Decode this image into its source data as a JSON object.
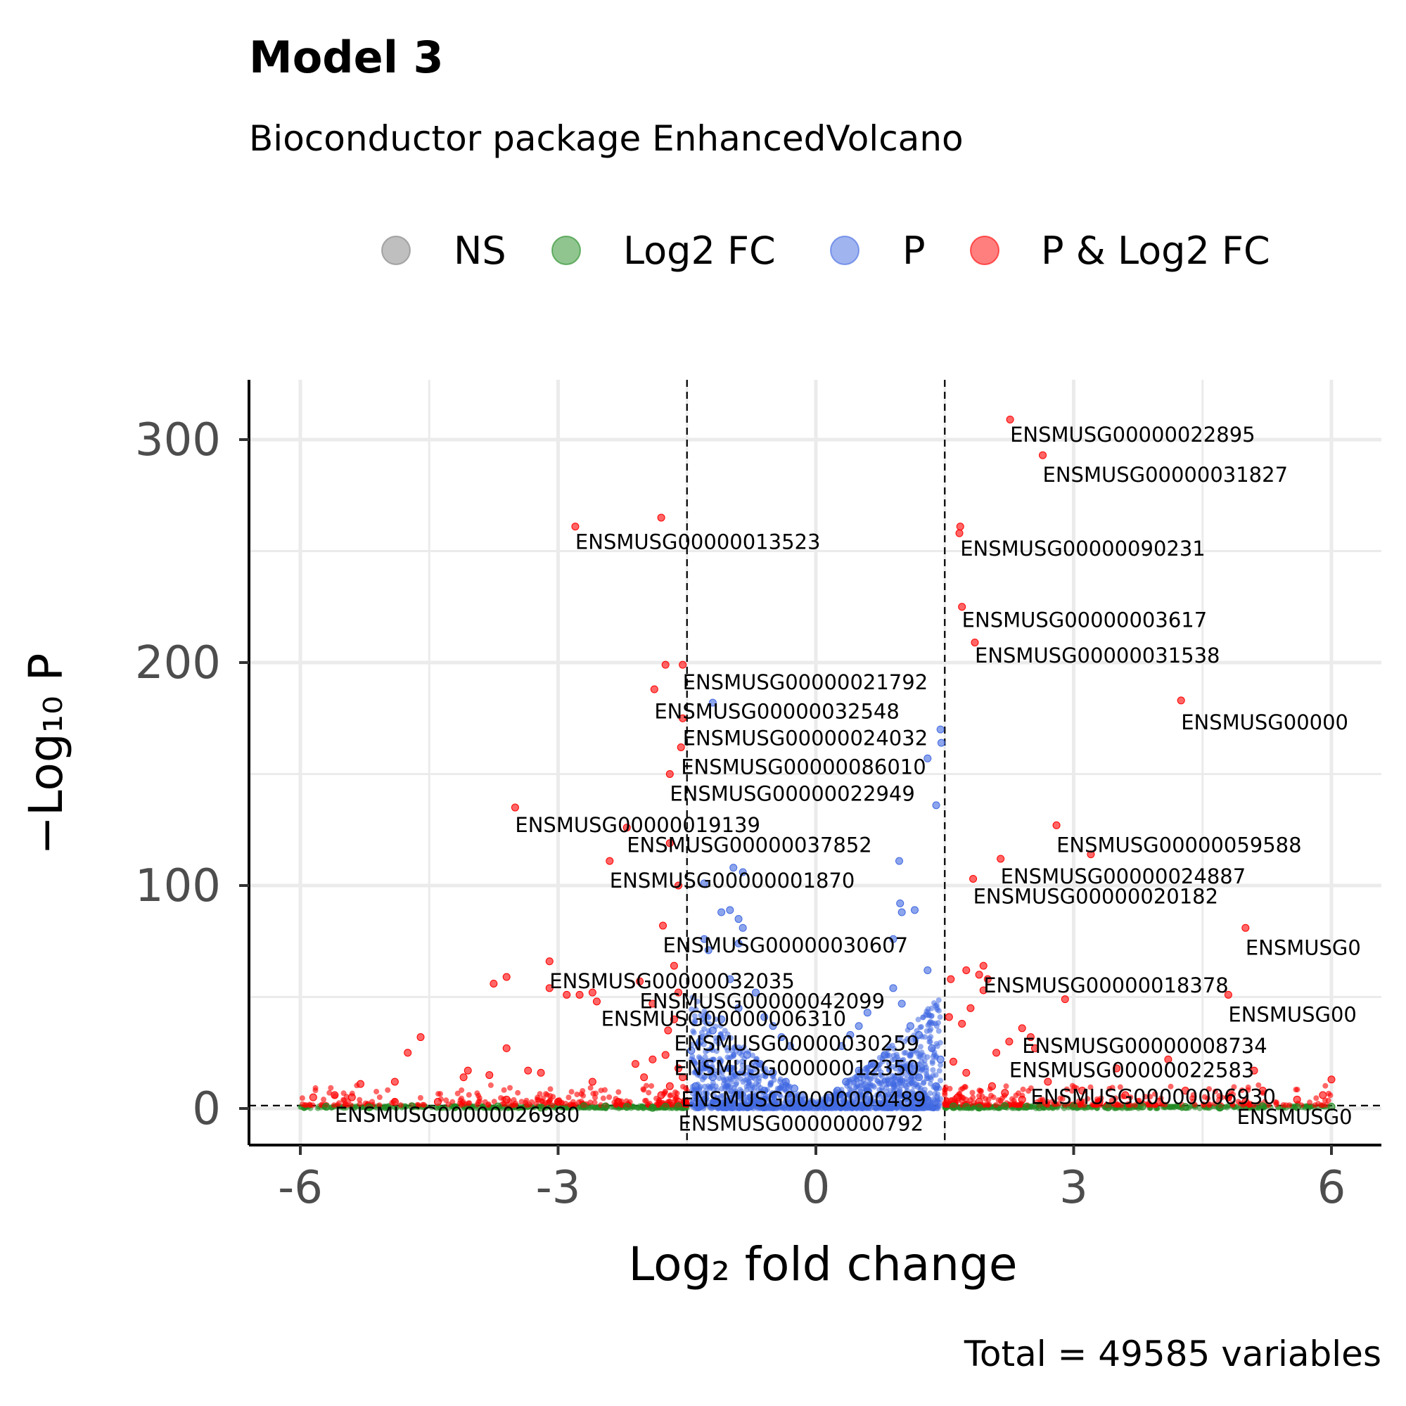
{
  "chart_data": {
    "type": "scatter",
    "title": "Model 3",
    "subtitle": "Bioconductor package EnhancedVolcano",
    "xlabel": "Log₂ fold change",
    "ylabel": "−Log₁₀ P",
    "caption": "Total = 49585 variables",
    "xlim": [
      -6.6,
      6.6
    ],
    "ylim": [
      -15,
      330
    ],
    "x_ticks": [
      -6,
      -3,
      0,
      3,
      6
    ],
    "x_tick_labels": [
      "-6",
      "-3",
      "0",
      "3",
      "6"
    ],
    "y_ticks": [
      0,
      100,
      200,
      300
    ],
    "y_tick_labels": [
      "0",
      "100",
      "200",
      "300"
    ],
    "fc_cutoff": 1.5,
    "p_cutoff_neglog10": 1.3,
    "grid": true,
    "legend_position": "top",
    "legend": [
      {
        "name": "NS",
        "color": "#7f7f7f"
      },
      {
        "name": "Log2 FC",
        "color": "#228b22"
      },
      {
        "name": "P",
        "color": "#4169e1"
      },
      {
        "name": "P & Log2 FC",
        "color": "#ff0000"
      }
    ],
    "series": [
      {
        "name": "P & Log2 FC",
        "color": "#ff0000",
        "points": [
          [
            2.26,
            309
          ],
          [
            2.64,
            293
          ],
          [
            -2.8,
            261
          ],
          [
            -1.8,
            265
          ],
          [
            1.68,
            261
          ],
          [
            1.67,
            258
          ],
          [
            1.7,
            225
          ],
          [
            1.85,
            209
          ],
          [
            4.25,
            183
          ],
          [
            -1.75,
            199
          ],
          [
            -1.55,
            199
          ],
          [
            -1.88,
            188
          ],
          [
            -1.55,
            175
          ],
          [
            -1.57,
            162
          ],
          [
            -1.7,
            150
          ],
          [
            -3.5,
            135
          ],
          [
            -2.2,
            126
          ],
          [
            -1.7,
            119
          ],
          [
            -2.4,
            111
          ],
          [
            -1.6,
            100
          ],
          [
            2.8,
            127
          ],
          [
            3.2,
            114
          ],
          [
            2.15,
            112
          ],
          [
            1.83,
            103
          ],
          [
            5.0,
            81
          ],
          [
            -1.78,
            82
          ],
          [
            -3.1,
            66
          ],
          [
            -1.65,
            64
          ],
          [
            -3.6,
            59
          ],
          [
            -3.75,
            56
          ],
          [
            -3.1,
            54
          ],
          [
            -2.05,
            57
          ],
          [
            -2.6,
            52
          ],
          [
            -2.9,
            51
          ],
          [
            -2.75,
            51
          ],
          [
            -2.55,
            48
          ],
          [
            -1.9,
            47
          ],
          [
            -1.6,
            52
          ],
          [
            -1.72,
            35
          ],
          [
            -1.65,
            40
          ],
          [
            1.95,
            64
          ],
          [
            1.75,
            62
          ],
          [
            1.57,
            58
          ],
          [
            1.9,
            60
          ],
          [
            2.0,
            58
          ],
          [
            1.95,
            53
          ],
          [
            2.9,
            49
          ],
          [
            1.8,
            45
          ],
          [
            4.8,
            51
          ],
          [
            1.55,
            41
          ],
          [
            1.7,
            38
          ],
          [
            2.4,
            36
          ],
          [
            2.5,
            32
          ],
          [
            2.25,
            30
          ],
          [
            2.55,
            27
          ],
          [
            2.1,
            25
          ],
          [
            4.1,
            22
          ],
          [
            3.5,
            18
          ],
          [
            5.1,
            17
          ],
          [
            6.0,
            13
          ],
          [
            -4.6,
            32
          ],
          [
            -4.75,
            25
          ],
          [
            -3.6,
            27
          ],
          [
            -4.05,
            17
          ],
          [
            -4.1,
            14
          ],
          [
            -3.35,
            17
          ],
          [
            -3.2,
            16
          ],
          [
            -3.8,
            15
          ],
          [
            -2.1,
            20
          ],
          [
            -2.0,
            14
          ],
          [
            -2.6,
            12
          ],
          [
            -4.9,
            12
          ],
          [
            -5.3,
            11
          ],
          [
            -5.6,
            6
          ],
          [
            -5.4,
            5
          ],
          [
            -5.85,
            5
          ],
          [
            -4.9,
            3
          ],
          [
            -4.4,
            3
          ],
          [
            -3.6,
            4
          ],
          [
            -3.0,
            3
          ],
          [
            -2.3,
            3
          ],
          [
            -1.8,
            6
          ],
          [
            -1.6,
            3
          ],
          [
            -1.75,
            24
          ],
          [
            -1.9,
            22
          ],
          [
            -1.6,
            18
          ],
          [
            -1.55,
            14
          ],
          [
            -1.7,
            10
          ],
          [
            1.6,
            21
          ],
          [
            1.75,
            16
          ],
          [
            2.05,
            10
          ],
          [
            2.2,
            7
          ],
          [
            2.7,
            12
          ],
          [
            3.1,
            8
          ],
          [
            3.6,
            6
          ],
          [
            4.3,
            8
          ],
          [
            4.8,
            5
          ],
          [
            5.2,
            8
          ],
          [
            5.6,
            4
          ],
          [
            5.9,
            6
          ],
          [
            2.4,
            4
          ],
          [
            3.3,
            3
          ],
          [
            4.0,
            3
          ],
          [
            5.0,
            3
          ],
          [
            1.65,
            5
          ],
          [
            1.9,
            3
          ]
        ]
      },
      {
        "name": "P",
        "color": "#4169e1",
        "points": [
          [
            -1.2,
            182
          ],
          [
            1.45,
            170
          ],
          [
            1.46,
            164
          ],
          [
            1.3,
            157
          ],
          [
            1.4,
            136
          ],
          [
            0.97,
            111
          ],
          [
            -0.96,
            108
          ],
          [
            -0.85,
            106
          ],
          [
            -1.3,
            101
          ],
          [
            0.98,
            92
          ],
          [
            1.15,
            89
          ],
          [
            1.0,
            88
          ],
          [
            -1.0,
            89
          ],
          [
            -1.1,
            88
          ],
          [
            -0.9,
            85
          ],
          [
            -0.85,
            81
          ],
          [
            -1.3,
            76
          ],
          [
            -0.9,
            74
          ],
          [
            0.9,
            76
          ],
          [
            -1.25,
            71
          ],
          [
            1.3,
            62
          ],
          [
            -1.0,
            58
          ],
          [
            -0.7,
            52
          ],
          [
            0.9,
            54
          ],
          [
            1.0,
            47
          ],
          [
            0.6,
            43
          ],
          [
            -0.6,
            41
          ],
          [
            -0.5,
            37
          ],
          [
            0.5,
            37
          ],
          [
            0.4,
            33
          ],
          [
            -0.4,
            32
          ],
          [
            -0.3,
            28
          ],
          [
            0.3,
            28
          ],
          [
            -0.9,
            45
          ],
          [
            -1.1,
            40
          ],
          [
            -1.2,
            35
          ],
          [
            -1.35,
            30
          ],
          [
            -1.45,
            26
          ],
          [
            1.1,
            37
          ],
          [
            1.2,
            33
          ],
          [
            1.35,
            27
          ],
          [
            1.45,
            22
          ],
          [
            -0.8,
            24
          ],
          [
            -0.65,
            20
          ],
          [
            -0.5,
            16
          ],
          [
            -0.35,
            12
          ],
          [
            -0.25,
            9
          ],
          [
            -0.15,
            6
          ],
          [
            0.8,
            24
          ],
          [
            0.65,
            20
          ],
          [
            0.5,
            17
          ],
          [
            0.35,
            12
          ],
          [
            0.25,
            8
          ],
          [
            0.15,
            5
          ],
          [
            -1.0,
            18
          ],
          [
            -1.2,
            14
          ],
          [
            -1.4,
            10
          ],
          [
            1.0,
            18
          ],
          [
            1.2,
            14
          ],
          [
            1.4,
            10
          ],
          [
            -0.6,
            8
          ],
          [
            -0.9,
            6
          ],
          [
            -1.3,
            4
          ],
          [
            0.6,
            8
          ],
          [
            0.9,
            6
          ],
          [
            1.3,
            4
          ]
        ]
      },
      {
        "name": "Log2 FC",
        "color": "#228b22",
        "points": [
          [
            -5.7,
            0.8
          ],
          [
            -5.2,
            0.5
          ],
          [
            -4.7,
            1.0
          ],
          [
            -4.2,
            0.6
          ],
          [
            -3.7,
            0.9
          ],
          [
            -3.2,
            0.4
          ],
          [
            -2.7,
            1.0
          ],
          [
            -2.2,
            0.7
          ],
          [
            -1.9,
            0.3
          ],
          [
            -1.6,
            1.0
          ],
          [
            1.6,
            0.9
          ],
          [
            1.9,
            0.4
          ],
          [
            2.2,
            1.1
          ],
          [
            2.6,
            0.6
          ],
          [
            3.0,
            1.0
          ],
          [
            3.4,
            0.5
          ],
          [
            3.8,
            0.9
          ],
          [
            4.3,
            0.7
          ],
          [
            4.7,
            0.4
          ],
          [
            5.2,
            1.0
          ],
          [
            5.6,
            0.6
          ],
          [
            6.0,
            0.8
          ],
          [
            -2.45,
            0.9
          ],
          [
            -1.75,
            0.8
          ],
          [
            1.75,
            0.7
          ],
          [
            2.45,
            0.8
          ]
        ]
      }
    ],
    "labels": [
      {
        "text": "ENSMUSG00000022895",
        "x": 2.26,
        "y": 299
      },
      {
        "text": "ENSMUSG00000031827",
        "x": 2.64,
        "y": 281
      },
      {
        "text": "ENSMUSG00000013523",
        "x": -2.8,
        "y": 251
      },
      {
        "text": "ENSMUSG00000090231",
        "x": 1.68,
        "y": 248
      },
      {
        "text": "ENSMUSG00000003617",
        "x": 1.7,
        "y": 216
      },
      {
        "text": "ENSMUSG00000031538",
        "x": 1.85,
        "y": 200
      },
      {
        "text": "ENSMUSG00000021792",
        "x": -1.55,
        "y": 188
      },
      {
        "text": "ENSMUSG00000032548",
        "x": -1.88,
        "y": 175
      },
      {
        "text": "ENSMUSG00000",
        "x": 4.25,
        "y": 170
      },
      {
        "text": "ENSMUSG00000024032",
        "x": -1.55,
        "y": 163
      },
      {
        "text": "ENSMUSG00000086010",
        "x": -1.57,
        "y": 150
      },
      {
        "text": "ENSMUSG00000022949",
        "x": -1.7,
        "y": 138
      },
      {
        "text": "ENSMUSG00000019139",
        "x": -3.5,
        "y": 124
      },
      {
        "text": "ENSMUSG00000037852",
        "x": -2.2,
        "y": 115
      },
      {
        "text": "ENSMUSG00000059588",
        "x": 2.8,
        "y": 115
      },
      {
        "text": "ENSMUSG00000024887",
        "x": 2.15,
        "y": 101
      },
      {
        "text": "ENSMUSG00000001870",
        "x": -2.4,
        "y": 99
      },
      {
        "text": "ENSMUSG00000020182",
        "x": 1.83,
        "y": 92
      },
      {
        "text": "ENSMUSG0",
        "x": 5.0,
        "y": 69
      },
      {
        "text": "ENSMUSG00000030607",
        "x": -1.78,
        "y": 70
      },
      {
        "text": "ENSMUSG00000032035",
        "x": -3.1,
        "y": 54
      },
      {
        "text": "ENSMUSG00000018378",
        "x": 1.95,
        "y": 52
      },
      {
        "text": "ENSMUSG00000042099",
        "x": -2.05,
        "y": 45
      },
      {
        "text": "ENSMUSG00",
        "x": 4.8,
        "y": 39
      },
      {
        "text": "ENSMUSG00000006310",
        "x": -2.5,
        "y": 37
      },
      {
        "text": "ENSMUSG00000030259",
        "x": -1.65,
        "y": 26
      },
      {
        "text": "ENSMUSG00000008734",
        "x": 2.4,
        "y": 25
      },
      {
        "text": "ENSMUSG00000012350",
        "x": -1.65,
        "y": 15
      },
      {
        "text": "ENSMUSG00000022583",
        "x": 2.25,
        "y": 14
      },
      {
        "text": "ENSMUSG00000000489",
        "x": -1.57,
        "y": 1
      },
      {
        "text": "ENSMUSG00000006930",
        "x": 2.5,
        "y": 2
      },
      {
        "text": "ENSMUSG00000026980",
        "x": -5.6,
        "y": -6
      },
      {
        "text": "ENSMUSG00000000792",
        "x": -1.6,
        "y": -10
      },
      {
        "text": "ENSMUSG0",
        "x": 4.9,
        "y": -7
      }
    ]
  }
}
